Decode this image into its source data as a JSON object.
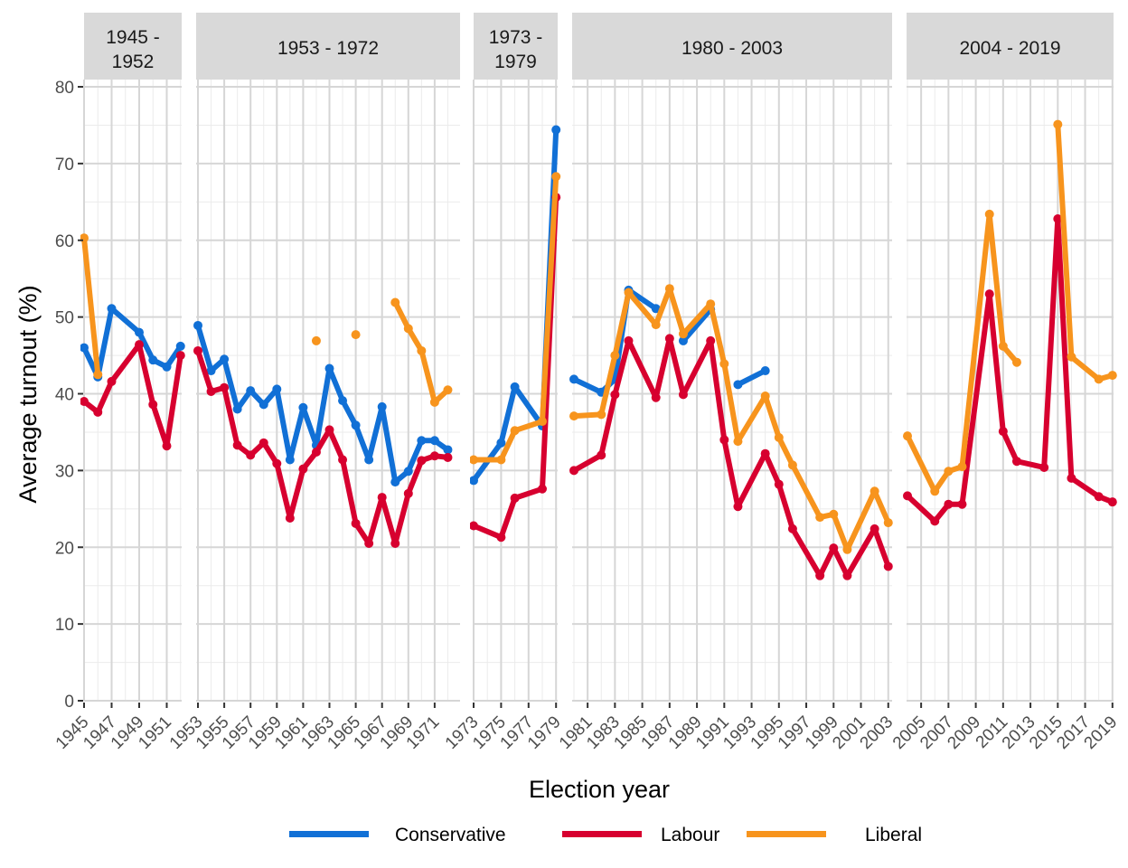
{
  "chart_data": {
    "type": "line",
    "title": "",
    "xlabel": "Election year",
    "ylabel": "Average turnout (%)",
    "ylim": [
      0,
      80
    ],
    "yticks": [
      0,
      10,
      20,
      30,
      40,
      50,
      60,
      70,
      80
    ],
    "grid": true,
    "legend_position": "bottom",
    "panels": [
      {
        "label": "1945 -\n1952",
        "label_lines": [
          "1945 -",
          "1952"
        ],
        "xlim": [
          1945,
          1952
        ],
        "xticks": [
          1945,
          1947,
          1949,
          1951
        ]
      },
      {
        "label": "1953 - 1972",
        "label_lines": [
          "1953 - 1972"
        ],
        "xlim": [
          1953,
          1972.6
        ],
        "xticks": [
          1953,
          1955,
          1957,
          1959,
          1961,
          1963,
          1965,
          1967,
          1969,
          1971
        ]
      },
      {
        "label": "1973 -\n1979",
        "label_lines": [
          "1973 -",
          "1979"
        ],
        "xlim": [
          1973,
          1979
        ],
        "xticks": [
          1973,
          1975,
          1977,
          1979
        ]
      },
      {
        "label": "1980 - 2003",
        "label_lines": [
          "1980 - 2003"
        ],
        "xlim": [
          1980,
          2003
        ],
        "xticks": [
          1981,
          1983,
          1985,
          1987,
          1989,
          1991,
          1993,
          1995,
          1997,
          1999,
          2001,
          2003
        ]
      },
      {
        "label": "2004 - 2019",
        "label_lines": [
          "2004 - 2019"
        ],
        "xlim": [
          2004,
          2019
        ],
        "xticks": [
          2005,
          2007,
          2009,
          2011,
          2013,
          2015,
          2017,
          2019
        ]
      }
    ],
    "series": [
      {
        "name": "Conservative",
        "color": "#1170d6",
        "segments": [
          [
            [
              1945,
              46.0
            ],
            [
              1946,
              42.2
            ],
            [
              1947,
              51.1
            ],
            [
              1949,
              48.0
            ],
            [
              1950,
              44.4
            ],
            [
              1951,
              43.5
            ],
            [
              1952,
              46.2
            ]
          ],
          [
            [
              1953,
              48.9
            ],
            [
              1954,
              43.0
            ],
            [
              1955,
              44.5
            ],
            [
              1956,
              38.0
            ],
            [
              1957,
              40.4
            ],
            [
              1958,
              38.6
            ],
            [
              1959,
              40.6
            ],
            [
              1960,
              31.4
            ],
            [
              1961,
              38.2
            ],
            [
              1962,
              33.3
            ],
            [
              1963,
              43.3
            ],
            [
              1964,
              39.1
            ],
            [
              1965,
              35.9
            ],
            [
              1966,
              31.4
            ],
            [
              1967,
              38.3
            ],
            [
              1968,
              28.5
            ],
            [
              1969,
              29.9
            ],
            [
              1970,
              33.9
            ],
            [
              1971,
              33.9
            ],
            [
              1972,
              32.7
            ]
          ],
          [
            [
              1973,
              28.7
            ],
            [
              1975,
              33.6
            ],
            [
              1976,
              40.9
            ],
            [
              1978,
              35.8
            ],
            [
              1979,
              74.4
            ]
          ],
          [
            [
              1980,
              41.9
            ],
            [
              1982,
              40.2
            ],
            [
              1983,
              41.9
            ],
            [
              1984,
              53.5
            ],
            [
              1986,
              51.1
            ]
          ],
          [
            [
              1988,
              46.9
            ],
            [
              1990,
              51.0
            ]
          ],
          [
            [
              1992,
              41.2
            ],
            [
              1994,
              43.0
            ]
          ]
        ]
      },
      {
        "name": "Labour",
        "color": "#d7002f",
        "segments": [
          [
            [
              1945,
              39.0
            ],
            [
              1946,
              37.6
            ],
            [
              1947,
              41.6
            ],
            [
              1949,
              46.4
            ],
            [
              1950,
              38.6
            ],
            [
              1951,
              33.2
            ],
            [
              1952,
              45.0
            ]
          ],
          [
            [
              1953,
              45.6
            ],
            [
              1954,
              40.3
            ],
            [
              1955,
              40.8
            ],
            [
              1956,
              33.3
            ],
            [
              1957,
              32.0
            ],
            [
              1958,
              33.6
            ],
            [
              1959,
              30.9
            ],
            [
              1960,
              23.8
            ],
            [
              1961,
              30.2
            ],
            [
              1962,
              32.4
            ],
            [
              1963,
              35.3
            ],
            [
              1964,
              31.4
            ],
            [
              1965,
              23.1
            ],
            [
              1966,
              20.5
            ],
            [
              1967,
              26.5
            ],
            [
              1968,
              20.5
            ],
            [
              1969,
              27.0
            ],
            [
              1970,
              31.3
            ],
            [
              1971,
              31.9
            ],
            [
              1972,
              31.7
            ]
          ],
          [
            [
              1973,
              22.8
            ],
            [
              1975,
              21.3
            ],
            [
              1976,
              26.4
            ],
            [
              1978,
              27.6
            ],
            [
              1979,
              65.6
            ]
          ],
          [
            [
              1980,
              30.0
            ],
            [
              1982,
              32.0
            ],
            [
              1983,
              39.9
            ],
            [
              1984,
              46.9
            ],
            [
              1986,
              39.5
            ],
            [
              1987,
              47.2
            ],
            [
              1988,
              39.9
            ],
            [
              1990,
              46.9
            ],
            [
              1991,
              34.0
            ],
            [
              1992,
              25.3
            ],
            [
              1994,
              32.2
            ],
            [
              1995,
              28.2
            ],
            [
              1996,
              22.4
            ],
            [
              1998,
              16.3
            ],
            [
              1999,
              19.9
            ],
            [
              2000,
              16.3
            ],
            [
              2002,
              22.4
            ],
            [
              2003,
              17.5
            ]
          ],
          [
            [
              2004,
              26.7
            ],
            [
              2006,
              23.4
            ],
            [
              2007,
              25.6
            ],
            [
              2008,
              25.6
            ],
            [
              2010,
              53.0
            ],
            [
              2011,
              35.1
            ],
            [
              2012,
              31.2
            ],
            [
              2014,
              30.4
            ],
            [
              2015,
              62.8
            ],
            [
              2016,
              29.0
            ],
            [
              2018,
              26.6
            ],
            [
              2019,
              25.9
            ]
          ]
        ]
      },
      {
        "name": "Liberal",
        "color": "#f7941d",
        "segments": [
          [
            [
              1945,
              60.3
            ],
            [
              1946,
              42.5
            ]
          ],
          [
            [
              1962,
              46.9
            ]
          ],
          [
            [
              1965,
              47.7
            ]
          ],
          [
            [
              1968,
              51.9
            ],
            [
              1969,
              48.5
            ],
            [
              1970,
              45.6
            ],
            [
              1971,
              38.9
            ],
            [
              1972,
              40.5
            ]
          ],
          [
            [
              1973,
              31.4
            ],
            [
              1975,
              31.4
            ],
            [
              1976,
              35.2
            ],
            [
              1978,
              36.4
            ],
            [
              1979,
              68.3
            ]
          ],
          [
            [
              1980,
              37.1
            ],
            [
              1982,
              37.3
            ],
            [
              1983,
              45.0
            ],
            [
              1984,
              53.2
            ],
            [
              1986,
              49.0
            ],
            [
              1987,
              53.7
            ],
            [
              1988,
              47.8
            ],
            [
              1990,
              51.7
            ],
            [
              1991,
              43.9
            ],
            [
              1992,
              33.8
            ],
            [
              1994,
              39.7
            ],
            [
              1995,
              34.3
            ],
            [
              1996,
              30.7
            ],
            [
              1998,
              23.9
            ],
            [
              1999,
              24.3
            ],
            [
              2000,
              19.7
            ],
            [
              2002,
              27.3
            ],
            [
              2003,
              23.2
            ]
          ],
          [
            [
              2004,
              34.5
            ],
            [
              2006,
              27.3
            ],
            [
              2007,
              29.9
            ],
            [
              2008,
              30.5
            ],
            [
              2010,
              63.4
            ],
            [
              2011,
              46.2
            ],
            [
              2012,
              44.1
            ]
          ],
          [
            [
              2015,
              75.1
            ],
            [
              2016,
              44.8
            ],
            [
              2018,
              41.9
            ],
            [
              2019,
              42.4
            ]
          ]
        ]
      }
    ]
  }
}
